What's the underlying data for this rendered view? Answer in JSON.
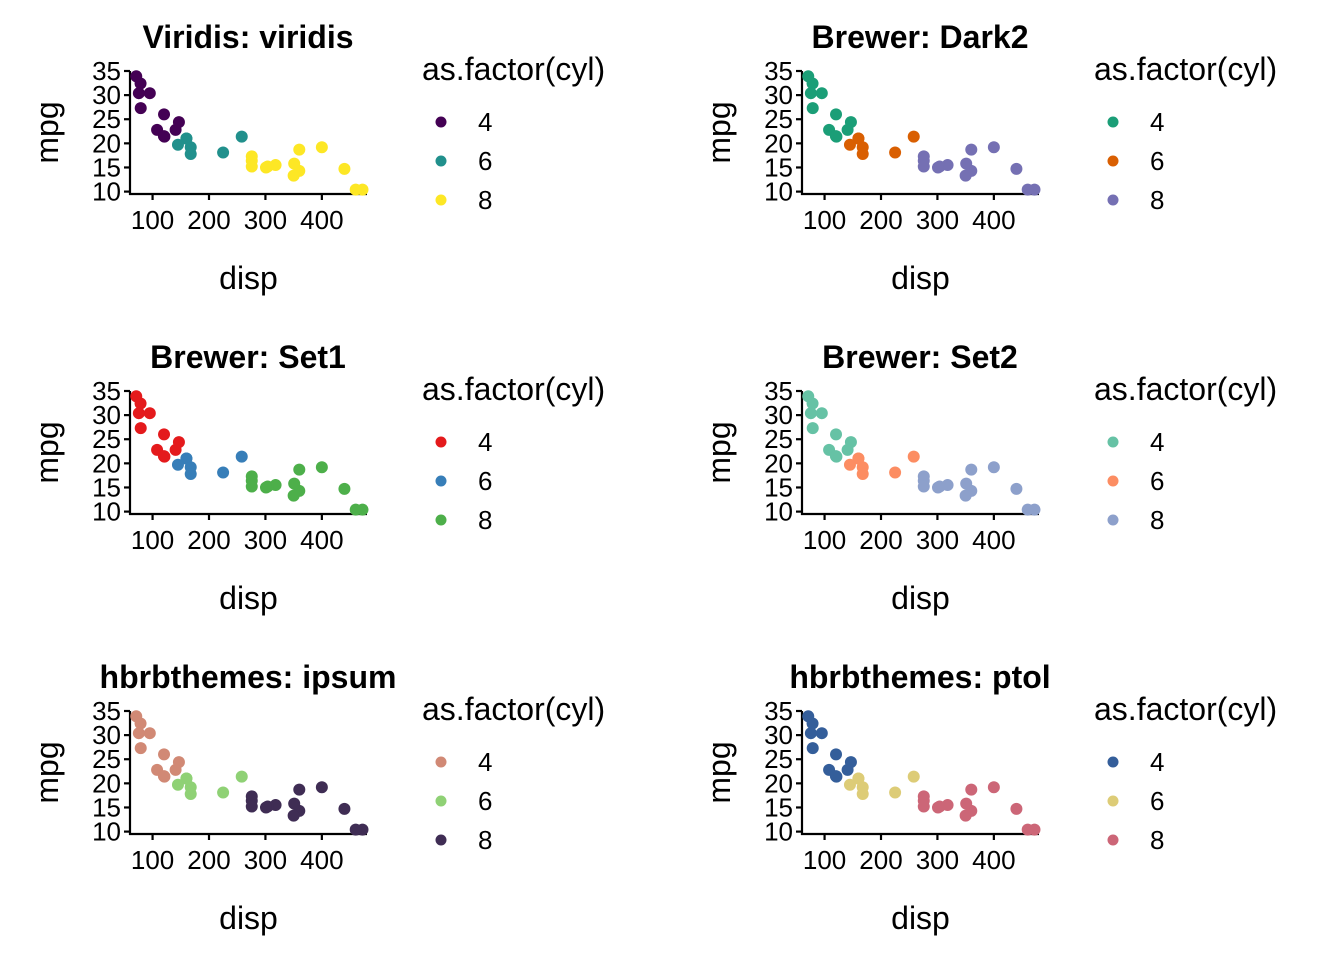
{
  "chart_data": [
    {
      "type": "scatter",
      "title": "Viridis: viridis",
      "xlabel": "disp",
      "ylabel": "mpg",
      "legend_title": "as.factor(cyl)",
      "legend_position": "right",
      "xlim": [
        60,
        480
      ],
      "ylim": [
        9.5,
        35
      ],
      "xticks": [
        100,
        200,
        300,
        400
      ],
      "yticks": [
        10,
        15,
        20,
        25,
        30,
        35
      ],
      "series": [
        {
          "name": "4",
          "color": "#440154",
          "points": [
            [
              108,
              22.8
            ],
            [
              146.7,
              24.4
            ],
            [
              140.8,
              22.8
            ],
            [
              78.7,
              32.4
            ],
            [
              75.7,
              30.4
            ],
            [
              71.1,
              33.9
            ],
            [
              120.1,
              21.5
            ],
            [
              79,
              27.3
            ],
            [
              120.3,
              26
            ],
            [
              95.1,
              30.4
            ],
            [
              121,
              21.4
            ]
          ]
        },
        {
          "name": "6",
          "color": "#21908C",
          "points": [
            [
              160,
              21
            ],
            [
              160,
              21
            ],
            [
              258,
              21.4
            ],
            [
              225,
              18.1
            ],
            [
              167.6,
              19.2
            ],
            [
              167.6,
              17.8
            ],
            [
              145,
              19.7
            ]
          ]
        },
        {
          "name": "8",
          "color": "#FDE725",
          "points": [
            [
              360,
              18.7
            ],
            [
              360,
              14.3
            ],
            [
              275.8,
              16.4
            ],
            [
              275.8,
              17.3
            ],
            [
              275.8,
              15.2
            ],
            [
              472,
              10.4
            ],
            [
              460,
              10.4
            ],
            [
              440,
              14.7
            ],
            [
              318,
              15.5
            ],
            [
              304,
              15.2
            ],
            [
              350,
              13.3
            ],
            [
              400,
              19.2
            ],
            [
              351,
              15.8
            ],
            [
              301,
              15
            ]
          ]
        }
      ]
    },
    {
      "type": "scatter",
      "title": "Brewer: Dark2",
      "xlabel": "disp",
      "ylabel": "mpg",
      "legend_title": "as.factor(cyl)",
      "legend_position": "right",
      "xlim": [
        60,
        480
      ],
      "ylim": [
        9.5,
        35
      ],
      "xticks": [
        100,
        200,
        300,
        400
      ],
      "yticks": [
        10,
        15,
        20,
        25,
        30,
        35
      ],
      "series": [
        {
          "name": "4",
          "color": "#1B9E77",
          "points": [
            [
              108,
              22.8
            ],
            [
              146.7,
              24.4
            ],
            [
              140.8,
              22.8
            ],
            [
              78.7,
              32.4
            ],
            [
              75.7,
              30.4
            ],
            [
              71.1,
              33.9
            ],
            [
              120.1,
              21.5
            ],
            [
              79,
              27.3
            ],
            [
              120.3,
              26
            ],
            [
              95.1,
              30.4
            ],
            [
              121,
              21.4
            ]
          ]
        },
        {
          "name": "6",
          "color": "#D95F02",
          "points": [
            [
              160,
              21
            ],
            [
              160,
              21
            ],
            [
              258,
              21.4
            ],
            [
              225,
              18.1
            ],
            [
              167.6,
              19.2
            ],
            [
              167.6,
              17.8
            ],
            [
              145,
              19.7
            ]
          ]
        },
        {
          "name": "8",
          "color": "#7570B3",
          "points": [
            [
              360,
              18.7
            ],
            [
              360,
              14.3
            ],
            [
              275.8,
              16.4
            ],
            [
              275.8,
              17.3
            ],
            [
              275.8,
              15.2
            ],
            [
              472,
              10.4
            ],
            [
              460,
              10.4
            ],
            [
              440,
              14.7
            ],
            [
              318,
              15.5
            ],
            [
              304,
              15.2
            ],
            [
              350,
              13.3
            ],
            [
              400,
              19.2
            ],
            [
              351,
              15.8
            ],
            [
              301,
              15
            ]
          ]
        }
      ]
    },
    {
      "type": "scatter",
      "title": "Brewer: Set1",
      "xlabel": "disp",
      "ylabel": "mpg",
      "legend_title": "as.factor(cyl)",
      "legend_position": "right",
      "xlim": [
        60,
        480
      ],
      "ylim": [
        9.5,
        35
      ],
      "xticks": [
        100,
        200,
        300,
        400
      ],
      "yticks": [
        10,
        15,
        20,
        25,
        30,
        35
      ],
      "series": [
        {
          "name": "4",
          "color": "#E41A1C",
          "points": [
            [
              108,
              22.8
            ],
            [
              146.7,
              24.4
            ],
            [
              140.8,
              22.8
            ],
            [
              78.7,
              32.4
            ],
            [
              75.7,
              30.4
            ],
            [
              71.1,
              33.9
            ],
            [
              120.1,
              21.5
            ],
            [
              79,
              27.3
            ],
            [
              120.3,
              26
            ],
            [
              95.1,
              30.4
            ],
            [
              121,
              21.4
            ]
          ]
        },
        {
          "name": "6",
          "color": "#377EB8",
          "points": [
            [
              160,
              21
            ],
            [
              160,
              21
            ],
            [
              258,
              21.4
            ],
            [
              225,
              18.1
            ],
            [
              167.6,
              19.2
            ],
            [
              167.6,
              17.8
            ],
            [
              145,
              19.7
            ]
          ]
        },
        {
          "name": "8",
          "color": "#4DAF4A",
          "points": [
            [
              360,
              18.7
            ],
            [
              360,
              14.3
            ],
            [
              275.8,
              16.4
            ],
            [
              275.8,
              17.3
            ],
            [
              275.8,
              15.2
            ],
            [
              472,
              10.4
            ],
            [
              460,
              10.4
            ],
            [
              440,
              14.7
            ],
            [
              318,
              15.5
            ],
            [
              304,
              15.2
            ],
            [
              350,
              13.3
            ],
            [
              400,
              19.2
            ],
            [
              351,
              15.8
            ],
            [
              301,
              15
            ]
          ]
        }
      ]
    },
    {
      "type": "scatter",
      "title": "Brewer: Set2",
      "xlabel": "disp",
      "ylabel": "mpg",
      "legend_title": "as.factor(cyl)",
      "legend_position": "right",
      "xlim": [
        60,
        480
      ],
      "ylim": [
        9.5,
        35
      ],
      "xticks": [
        100,
        200,
        300,
        400
      ],
      "yticks": [
        10,
        15,
        20,
        25,
        30,
        35
      ],
      "series": [
        {
          "name": "4",
          "color": "#66C2A5",
          "points": [
            [
              108,
              22.8
            ],
            [
              146.7,
              24.4
            ],
            [
              140.8,
              22.8
            ],
            [
              78.7,
              32.4
            ],
            [
              75.7,
              30.4
            ],
            [
              71.1,
              33.9
            ],
            [
              120.1,
              21.5
            ],
            [
              79,
              27.3
            ],
            [
              120.3,
              26
            ],
            [
              95.1,
              30.4
            ],
            [
              121,
              21.4
            ]
          ]
        },
        {
          "name": "6",
          "color": "#FC8D62",
          "points": [
            [
              160,
              21
            ],
            [
              160,
              21
            ],
            [
              258,
              21.4
            ],
            [
              225,
              18.1
            ],
            [
              167.6,
              19.2
            ],
            [
              167.6,
              17.8
            ],
            [
              145,
              19.7
            ]
          ]
        },
        {
          "name": "8",
          "color": "#8DA0CB",
          "points": [
            [
              360,
              18.7
            ],
            [
              360,
              14.3
            ],
            [
              275.8,
              16.4
            ],
            [
              275.8,
              17.3
            ],
            [
              275.8,
              15.2
            ],
            [
              472,
              10.4
            ],
            [
              460,
              10.4
            ],
            [
              440,
              14.7
            ],
            [
              318,
              15.5
            ],
            [
              304,
              15.2
            ],
            [
              350,
              13.3
            ],
            [
              400,
              19.2
            ],
            [
              351,
              15.8
            ],
            [
              301,
              15
            ]
          ]
        }
      ]
    },
    {
      "type": "scatter",
      "title": "hbrbthemes: ipsum",
      "xlabel": "disp",
      "ylabel": "mpg",
      "legend_title": "as.factor(cyl)",
      "legend_position": "right",
      "xlim": [
        60,
        480
      ],
      "ylim": [
        9.5,
        35
      ],
      "xticks": [
        100,
        200,
        300,
        400
      ],
      "yticks": [
        10,
        15,
        20,
        25,
        30,
        35
      ],
      "series": [
        {
          "name": "4",
          "color": "#D18975",
          "points": [
            [
              108,
              22.8
            ],
            [
              146.7,
              24.4
            ],
            [
              140.8,
              22.8
            ],
            [
              78.7,
              32.4
            ],
            [
              75.7,
              30.4
            ],
            [
              71.1,
              33.9
            ],
            [
              120.1,
              21.5
            ],
            [
              79,
              27.3
            ],
            [
              120.3,
              26
            ],
            [
              95.1,
              30.4
            ],
            [
              121,
              21.4
            ]
          ]
        },
        {
          "name": "6",
          "color": "#8FD175",
          "points": [
            [
              160,
              21
            ],
            [
              160,
              21
            ],
            [
              258,
              21.4
            ],
            [
              225,
              18.1
            ],
            [
              167.6,
              19.2
            ],
            [
              167.6,
              17.8
            ],
            [
              145,
              19.7
            ]
          ]
        },
        {
          "name": "8",
          "color": "#3F2D54",
          "points": [
            [
              360,
              18.7
            ],
            [
              360,
              14.3
            ],
            [
              275.8,
              16.4
            ],
            [
              275.8,
              17.3
            ],
            [
              275.8,
              15.2
            ],
            [
              472,
              10.4
            ],
            [
              460,
              10.4
            ],
            [
              440,
              14.7
            ],
            [
              318,
              15.5
            ],
            [
              304,
              15.2
            ],
            [
              350,
              13.3
            ],
            [
              400,
              19.2
            ],
            [
              351,
              15.8
            ],
            [
              301,
              15
            ]
          ]
        }
      ]
    },
    {
      "type": "scatter",
      "title": "hbrbthemes: ptol",
      "xlabel": "disp",
      "ylabel": "mpg",
      "legend_title": "as.factor(cyl)",
      "legend_position": "right",
      "xlim": [
        60,
        480
      ],
      "ylim": [
        9.5,
        35
      ],
      "xticks": [
        100,
        200,
        300,
        400
      ],
      "yticks": [
        10,
        15,
        20,
        25,
        30,
        35
      ],
      "series": [
        {
          "name": "4",
          "color": "#345E9A",
          "points": [
            [
              108,
              22.8
            ],
            [
              146.7,
              24.4
            ],
            [
              140.8,
              22.8
            ],
            [
              78.7,
              32.4
            ],
            [
              75.7,
              30.4
            ],
            [
              71.1,
              33.9
            ],
            [
              120.1,
              21.5
            ],
            [
              79,
              27.3
            ],
            [
              120.3,
              26
            ],
            [
              95.1,
              30.4
            ],
            [
              121,
              21.4
            ]
          ]
        },
        {
          "name": "6",
          "color": "#DDCC77",
          "points": [
            [
              160,
              21
            ],
            [
              160,
              21
            ],
            [
              258,
              21.4
            ],
            [
              225,
              18.1
            ],
            [
              167.6,
              19.2
            ],
            [
              167.6,
              17.8
            ],
            [
              145,
              19.7
            ]
          ]
        },
        {
          "name": "8",
          "color": "#CC6677",
          "points": [
            [
              360,
              18.7
            ],
            [
              360,
              14.3
            ],
            [
              275.8,
              16.4
            ],
            [
              275.8,
              17.3
            ],
            [
              275.8,
              15.2
            ],
            [
              472,
              10.4
            ],
            [
              460,
              10.4
            ],
            [
              440,
              14.7
            ],
            [
              318,
              15.5
            ],
            [
              304,
              15.2
            ],
            [
              350,
              13.3
            ],
            [
              400,
              19.2
            ],
            [
              351,
              15.8
            ],
            [
              301,
              15
            ]
          ]
        }
      ]
    }
  ]
}
